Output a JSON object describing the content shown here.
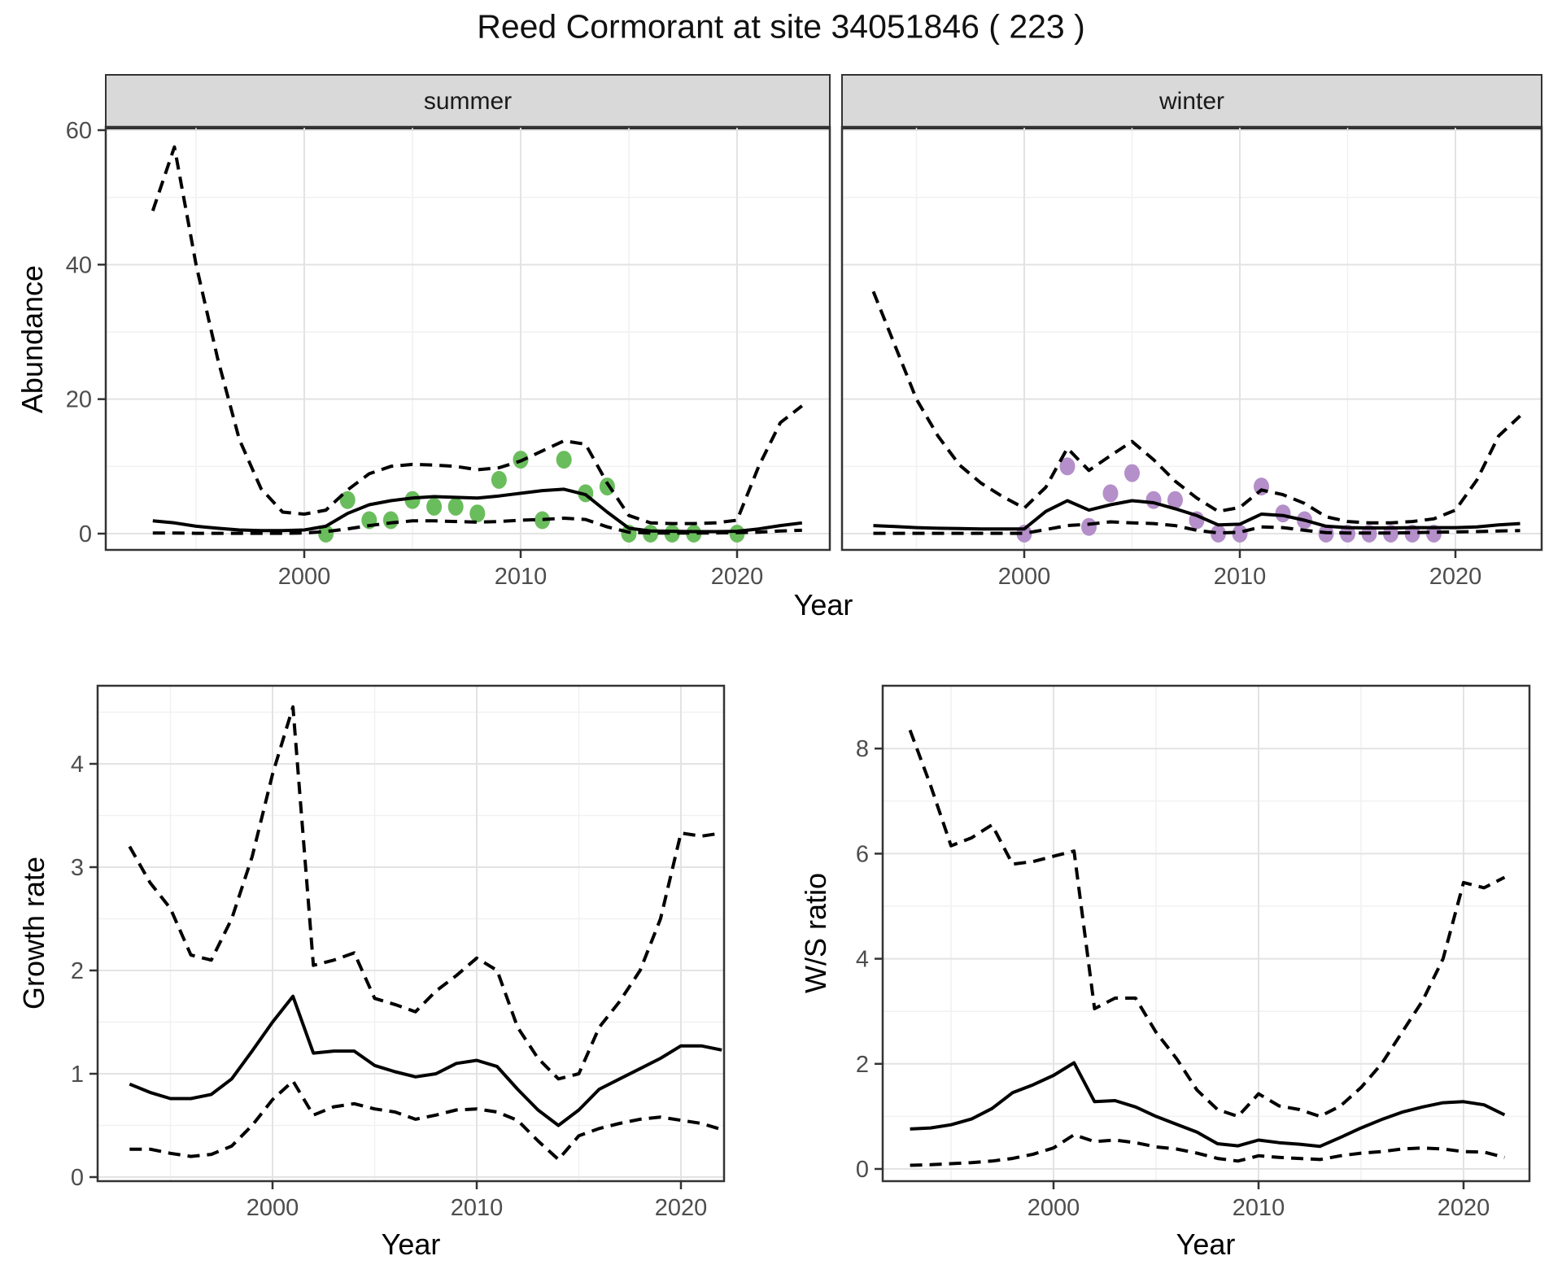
{
  "page_title": "Reed Cormorant at site 34051846 ( 223 )",
  "style": {
    "line_color": "#000000",
    "strip_fill": "#D9D9D9",
    "panel_border": "#333333",
    "grid_major": "#E3E3E3",
    "grid_minor": "#F1F1F1",
    "tick_color": "#333333",
    "tick_label_color": "#4D4D4D",
    "summer_point_color": "#6ABD5C",
    "winter_point_color": "#B48FC9"
  },
  "chart_data": [
    {
      "id": "abundance",
      "type": "line+scatter",
      "title": "Reed Cormorant at site 34051846 ( 223 )",
      "xlabel": "Year",
      "ylabel": "Abundance",
      "x_ticks": [
        2000,
        2010,
        2020
      ],
      "y_ticks": [
        0,
        20,
        40,
        60
      ],
      "xlim": [
        1993,
        2023
      ],
      "ylim": [
        0,
        60
      ],
      "grid": true,
      "legend": false,
      "facets": [
        {
          "label": "summer",
          "point_color": "#6ABD5C",
          "points": {
            "years": [
              2001,
              2002,
              2003,
              2004,
              2005,
              2006,
              2007,
              2008,
              2009,
              2010,
              2011,
              2012,
              2013,
              2014,
              2015,
              2016,
              2017,
              2018,
              2020
            ],
            "values": [
              0,
              5,
              2,
              2,
              5,
              4,
              4,
              3,
              8,
              11,
              2,
              11,
              6,
              7,
              0,
              0,
              0,
              0,
              0
            ]
          },
          "series": [
            {
              "name": "mean",
              "style": "solid",
              "years": [
                1993,
                1994,
                1995,
                1996,
                1997,
                1998,
                1999,
                2000,
                2001,
                2002,
                2003,
                2004,
                2005,
                2006,
                2007,
                2008,
                2009,
                2010,
                2011,
                2012,
                2013,
                2014,
                2015,
                2016,
                2017,
                2018,
                2019,
                2020,
                2021,
                2022,
                2023
              ],
              "values": [
                1.9,
                1.6,
                1.1,
                0.8,
                0.55,
                0.45,
                0.45,
                0.55,
                1.1,
                3.0,
                4.3,
                4.9,
                5.3,
                5.5,
                5.4,
                5.3,
                5.6,
                6.0,
                6.4,
                6.6,
                5.8,
                3.2,
                0.8,
                0.4,
                0.35,
                0.3,
                0.3,
                0.35,
                0.7,
                1.2,
                1.6
              ]
            },
            {
              "name": "upper-ci",
              "style": "dashed",
              "years": [
                1993,
                1994,
                1995,
                1996,
                1997,
                1998,
                1999,
                2000,
                2001,
                2002,
                2003,
                2004,
                2005,
                2006,
                2007,
                2008,
                2009,
                2010,
                2011,
                2012,
                2013,
                2014,
                2015,
                2016,
                2017,
                2018,
                2019,
                2020,
                2021,
                2022,
                2023
              ],
              "values": [
                48,
                57.5,
                40,
                26,
                14,
                6.7,
                3.2,
                2.9,
                3.5,
                6.5,
                8.9,
                10,
                10.3,
                10.2,
                10,
                9.5,
                9.8,
                10.8,
                12.3,
                13.8,
                13.3,
                7.5,
                2.7,
                1.6,
                1.5,
                1.5,
                1.6,
                2.0,
                10,
                16.5,
                19
              ]
            },
            {
              "name": "lower-ci",
              "style": "dashed",
              "years": [
                1993,
                1994,
                1995,
                1996,
                1997,
                1998,
                1999,
                2000,
                2001,
                2002,
                2003,
                2004,
                2005,
                2006,
                2007,
                2008,
                2009,
                2010,
                2011,
                2012,
                2013,
                2014,
                2015,
                2016,
                2017,
                2018,
                2019,
                2020,
                2021,
                2022,
                2023
              ],
              "values": [
                0.1,
                0.1,
                0.05,
                0.05,
                0.05,
                0.05,
                0.05,
                0.1,
                0.3,
                0.7,
                1.2,
                1.6,
                1.9,
                1.9,
                1.8,
                1.7,
                1.8,
                2.0,
                2.1,
                2.3,
                2.1,
                1.0,
                0.2,
                0.1,
                0.1,
                0.1,
                0.1,
                0.15,
                0.2,
                0.4,
                0.5
              ]
            }
          ]
        },
        {
          "label": "winter",
          "point_color": "#B48FC9",
          "points": {
            "years": [
              2000,
              2002,
              2003,
              2004,
              2005,
              2006,
              2007,
              2008,
              2009,
              2010,
              2011,
              2012,
              2013,
              2014,
              2015,
              2016,
              2017,
              2018,
              2019
            ],
            "values": [
              0,
              10,
              1,
              6,
              9,
              5,
              5,
              2,
              0,
              0,
              7,
              3,
              2,
              0,
              0,
              0,
              0,
              0,
              0
            ]
          },
          "series": [
            {
              "name": "mean",
              "style": "solid",
              "years": [
                1993,
                1994,
                1995,
                1996,
                1997,
                1998,
                1999,
                2000,
                2001,
                2002,
                2003,
                2004,
                2005,
                2006,
                2007,
                2008,
                2009,
                2010,
                2011,
                2012,
                2013,
                2014,
                2015,
                2016,
                2017,
                2018,
                2019,
                2020,
                2021,
                2022,
                2023
              ],
              "values": [
                1.2,
                1.05,
                0.9,
                0.8,
                0.75,
                0.7,
                0.7,
                0.7,
                3.3,
                4.9,
                3.5,
                4.3,
                4.9,
                4.6,
                3.7,
                2.7,
                1.3,
                1.4,
                2.9,
                2.7,
                2.0,
                1.1,
                0.9,
                0.85,
                0.85,
                0.9,
                0.9,
                0.9,
                1.0,
                1.3,
                1.5
              ]
            },
            {
              "name": "upper-ci",
              "style": "dashed",
              "years": [
                1993,
                1994,
                1995,
                1996,
                1997,
                1998,
                1999,
                2000,
                2001,
                2002,
                2003,
                2004,
                2005,
                2006,
                2007,
                2008,
                2009,
                2010,
                2011,
                2012,
                2013,
                2014,
                2015,
                2016,
                2017,
                2018,
                2019,
                2020,
                2021,
                2022,
                2023
              ],
              "values": [
                36,
                28,
                20,
                14.5,
                10.2,
                7.5,
                5.5,
                3.8,
                6.9,
                12.7,
                9.4,
                11.6,
                13.7,
                11,
                7.8,
                5.3,
                3.3,
                3.9,
                6.5,
                5.8,
                4.5,
                2.5,
                1.8,
                1.6,
                1.6,
                1.8,
                2.2,
                3.5,
                8,
                14.5,
                17.5
              ]
            },
            {
              "name": "lower-ci",
              "style": "dashed",
              "years": [
                1993,
                1994,
                1995,
                1996,
                1997,
                1998,
                1999,
                2000,
                2001,
                2002,
                2003,
                2004,
                2005,
                2006,
                2007,
                2008,
                2009,
                2010,
                2011,
                2012,
                2013,
                2014,
                2015,
                2016,
                2017,
                2018,
                2019,
                2020,
                2021,
                2022,
                2023
              ],
              "values": [
                0.05,
                0.05,
                0.05,
                0.05,
                0.05,
                0.05,
                0.05,
                0.05,
                0.6,
                1.2,
                1.4,
                1.75,
                1.6,
                1.5,
                1.2,
                0.5,
                0.1,
                0.2,
                1.0,
                0.9,
                0.5,
                0.15,
                0.1,
                0.1,
                0.1,
                0.15,
                0.2,
                0.25,
                0.3,
                0.4,
                0.45
              ]
            }
          ]
        }
      ]
    },
    {
      "id": "growth-rate",
      "type": "line",
      "xlabel": "Year",
      "ylabel": "Growth rate",
      "x_ticks": [
        2000,
        2010,
        2020
      ],
      "y_ticks": [
        0,
        1,
        2,
        3,
        4
      ],
      "xlim": [
        1993,
        2022
      ],
      "ylim": [
        0,
        4.6
      ],
      "grid": true,
      "legend": false,
      "series": [
        {
          "name": "mean",
          "style": "solid",
          "years": [
            1993,
            1994,
            1995,
            1996,
            1997,
            1998,
            1999,
            2000,
            2001,
            2002,
            2003,
            2004,
            2005,
            2006,
            2007,
            2008,
            2009,
            2010,
            2011,
            2012,
            2013,
            2014,
            2015,
            2016,
            2017,
            2018,
            2019,
            2020,
            2021,
            2022
          ],
          "values": [
            0.9,
            0.82,
            0.76,
            0.76,
            0.8,
            0.95,
            1.22,
            1.5,
            1.75,
            1.2,
            1.22,
            1.22,
            1.08,
            1.02,
            0.97,
            1.0,
            1.1,
            1.13,
            1.07,
            0.85,
            0.65,
            0.5,
            0.65,
            0.85,
            0.95,
            1.05,
            1.15,
            1.27,
            1.27,
            1.23
          ]
        },
        {
          "name": "upper-ci",
          "style": "dashed",
          "years": [
            1993,
            1994,
            1995,
            1996,
            1997,
            1998,
            1999,
            2000,
            2001,
            2002,
            2003,
            2004,
            2005,
            2006,
            2007,
            2008,
            2009,
            2010,
            2011,
            2012,
            2013,
            2014,
            2015,
            2016,
            2017,
            2018,
            2019,
            2020,
            2021,
            2022
          ],
          "values": [
            3.2,
            2.85,
            2.6,
            2.15,
            2.1,
            2.5,
            3.1,
            3.9,
            4.55,
            2.05,
            2.1,
            2.17,
            1.73,
            1.67,
            1.6,
            1.8,
            1.95,
            2.12,
            2.0,
            1.45,
            1.15,
            0.95,
            1.0,
            1.45,
            1.7,
            2.0,
            2.5,
            3.33,
            3.3,
            3.33
          ]
        },
        {
          "name": "lower-ci",
          "style": "dashed",
          "years": [
            1993,
            1994,
            1995,
            1996,
            1997,
            1998,
            1999,
            2000,
            2001,
            2002,
            2003,
            2004,
            2005,
            2006,
            2007,
            2008,
            2009,
            2010,
            2011,
            2012,
            2013,
            2014,
            2015,
            2016,
            2017,
            2018,
            2019,
            2020,
            2021,
            2022
          ],
          "values": [
            0.27,
            0.27,
            0.23,
            0.2,
            0.22,
            0.3,
            0.5,
            0.75,
            0.93,
            0.6,
            0.68,
            0.71,
            0.66,
            0.63,
            0.56,
            0.6,
            0.65,
            0.66,
            0.63,
            0.55,
            0.35,
            0.17,
            0.4,
            0.47,
            0.52,
            0.56,
            0.58,
            0.55,
            0.52,
            0.46
          ]
        }
      ]
    },
    {
      "id": "ws-ratio",
      "type": "line",
      "xlabel": "Year",
      "ylabel": "W/S ratio",
      "x_ticks": [
        2000,
        2010,
        2020
      ],
      "y_ticks": [
        0,
        2,
        4,
        6,
        8
      ],
      "xlim": [
        1993,
        2022
      ],
      "ylim": [
        0,
        8.4
      ],
      "grid": true,
      "legend": false,
      "series": [
        {
          "name": "mean",
          "style": "solid",
          "years": [
            1993,
            1994,
            1995,
            1996,
            1997,
            1998,
            1999,
            2000,
            2001,
            2002,
            2003,
            2004,
            2005,
            2006,
            2007,
            2008,
            2009,
            2010,
            2011,
            2012,
            2013,
            2014,
            2015,
            2016,
            2017,
            2018,
            2019,
            2020,
            2021,
            2022
          ],
          "values": [
            0.76,
            0.78,
            0.84,
            0.95,
            1.15,
            1.45,
            1.6,
            1.78,
            2.02,
            1.28,
            1.3,
            1.18,
            1.0,
            0.85,
            0.7,
            0.48,
            0.44,
            0.55,
            0.5,
            0.47,
            0.43,
            0.6,
            0.78,
            0.94,
            1.08,
            1.18,
            1.26,
            1.28,
            1.22,
            1.03
          ]
        },
        {
          "name": "upper-ci",
          "style": "dashed",
          "years": [
            1993,
            1994,
            1995,
            1996,
            1997,
            1998,
            1999,
            2000,
            2001,
            2002,
            2003,
            2004,
            2005,
            2006,
            2007,
            2008,
            2009,
            2010,
            2011,
            2012,
            2013,
            2014,
            2015,
            2016,
            2017,
            2018,
            2019,
            2020,
            2021,
            2022
          ],
          "values": [
            8.35,
            7.3,
            6.15,
            6.3,
            6.55,
            5.8,
            5.85,
            5.95,
            6.05,
            3.05,
            3.25,
            3.25,
            2.6,
            2.1,
            1.5,
            1.13,
            1.0,
            1.43,
            1.2,
            1.13,
            1.0,
            1.2,
            1.55,
            2.0,
            2.6,
            3.2,
            4.0,
            5.45,
            5.35,
            5.55
          ]
        },
        {
          "name": "lower-ci",
          "style": "dashed",
          "years": [
            1993,
            1994,
            1995,
            1996,
            1997,
            1998,
            1999,
            2000,
            2001,
            2002,
            2003,
            2004,
            2005,
            2006,
            2007,
            2008,
            2009,
            2010,
            2011,
            2012,
            2013,
            2014,
            2015,
            2016,
            2017,
            2018,
            2019,
            2020,
            2021,
            2022
          ],
          "values": [
            0.07,
            0.08,
            0.1,
            0.12,
            0.15,
            0.2,
            0.28,
            0.4,
            0.65,
            0.52,
            0.55,
            0.5,
            0.42,
            0.38,
            0.3,
            0.2,
            0.15,
            0.25,
            0.22,
            0.2,
            0.18,
            0.25,
            0.3,
            0.33,
            0.38,
            0.4,
            0.38,
            0.33,
            0.32,
            0.22
          ]
        }
      ]
    }
  ]
}
